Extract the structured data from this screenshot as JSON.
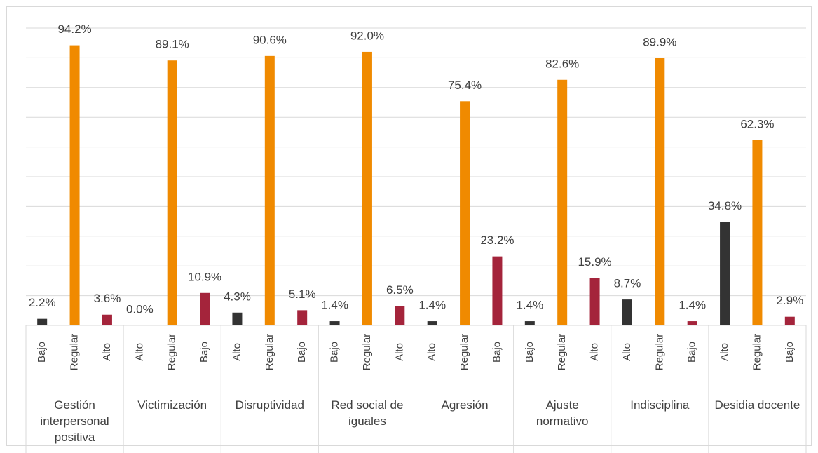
{
  "chart_data": {
    "type": "bar",
    "colors": [
      "#333333",
      "#f08a00",
      "#a4243b"
    ],
    "ylim": [
      0,
      100
    ],
    "yticks": [
      0,
      10,
      20,
      30,
      40,
      50,
      60,
      70,
      80,
      90,
      100
    ],
    "grid": true,
    "groups": [
      {
        "name": "Gestión interpersonal positiva",
        "categories": [
          "Bajo",
          "Regular",
          "Alto"
        ],
        "values": [
          2.2,
          94.2,
          3.6
        ],
        "value_labels": [
          "2.2%",
          "94.2%",
          "3.6%"
        ]
      },
      {
        "name": "Victimización",
        "categories": [
          "Alto",
          "Regular",
          "Bajo"
        ],
        "values": [
          0.0,
          89.1,
          10.9
        ],
        "value_labels": [
          "0.0%",
          "89.1%",
          "10.9%"
        ]
      },
      {
        "name": "Disruptividad",
        "categories": [
          "Alto",
          "Regular",
          "Bajo"
        ],
        "values": [
          4.3,
          90.6,
          5.1
        ],
        "value_labels": [
          "4.3%",
          "90.6%",
          "5.1%"
        ]
      },
      {
        "name": "Red social de iguales",
        "categories": [
          "Bajo",
          "Regular",
          "Alto"
        ],
        "values": [
          1.4,
          92.0,
          6.5
        ],
        "value_labels": [
          "1.4%",
          "92.0%",
          "6.5%"
        ]
      },
      {
        "name": "Agresión",
        "categories": [
          "Alto",
          "Regular",
          "Bajo"
        ],
        "values": [
          1.4,
          75.4,
          23.2
        ],
        "value_labels": [
          "1.4%",
          "75.4%",
          "23.2%"
        ]
      },
      {
        "name": "Ajuste normativo",
        "categories": [
          "Bajo",
          "Regular",
          "Alto"
        ],
        "values": [
          1.4,
          82.6,
          15.9
        ],
        "value_labels": [
          "1.4%",
          "82.6%",
          "15.9%"
        ]
      },
      {
        "name": "Indisciplina",
        "categories": [
          "Alto",
          "Regular",
          "Bajo"
        ],
        "values": [
          8.7,
          89.9,
          1.4
        ],
        "value_labels": [
          "8.7%",
          "89.9%",
          "1.4%"
        ]
      },
      {
        "name": "Desidia docente",
        "categories": [
          "Alto",
          "Regular",
          "Bajo"
        ],
        "values": [
          34.8,
          62.3,
          2.9
        ],
        "value_labels": [
          "34.8%",
          "62.3%",
          "2.9%"
        ]
      }
    ]
  }
}
